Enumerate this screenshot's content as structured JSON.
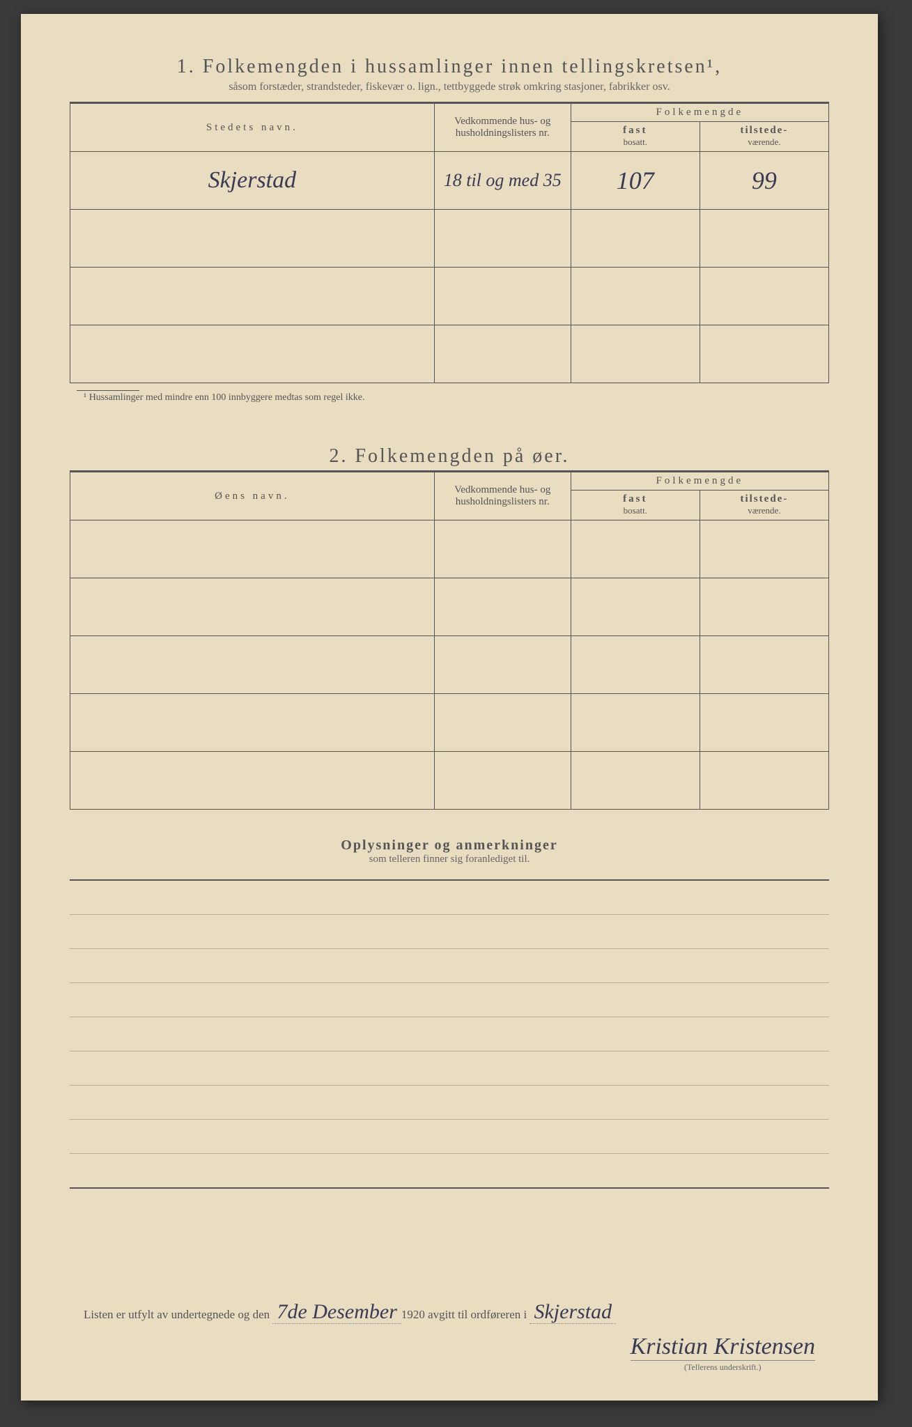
{
  "section1": {
    "number": "1.",
    "title": "Folkemengden i hussamlinger innen tellingskretsen¹,",
    "subtitle": "såsom forstæder, strandsteder, fiskevær o. lign., tettbyggede strøk omkring stasjoner, fabrikker osv.",
    "col_name": "Stedets navn.",
    "col_list": "Vedkommende hus- og husholdningslisters nr.",
    "col_group": "Folkemengde",
    "col_fast": "fast",
    "col_fast_sub": "bosatt.",
    "col_til": "tilstede-",
    "col_til_sub": "værende.",
    "rows": [
      {
        "name": "Skjerstad",
        "list": "18 til og med 35",
        "fast": "107",
        "til": "99"
      },
      {
        "name": "",
        "list": "",
        "fast": "",
        "til": ""
      },
      {
        "name": "",
        "list": "",
        "fast": "",
        "til": ""
      },
      {
        "name": "",
        "list": "",
        "fast": "",
        "til": ""
      }
    ],
    "footnote": "¹ Hussamlinger med mindre enn 100 innbyggere medtas som regel ikke."
  },
  "section2": {
    "number": "2.",
    "title": "Folkemengden på øer.",
    "col_name": "Øens navn.",
    "col_list": "Vedkommende hus- og husholdningslisters nr.",
    "col_group": "Folkemengde",
    "col_fast": "fast",
    "col_fast_sub": "bosatt.",
    "col_til": "tilstede-",
    "col_til_sub": "værende.",
    "rows": [
      {
        "name": "",
        "list": "",
        "fast": "",
        "til": ""
      },
      {
        "name": "",
        "list": "",
        "fast": "",
        "til": ""
      },
      {
        "name": "",
        "list": "",
        "fast": "",
        "til": ""
      },
      {
        "name": "",
        "list": "",
        "fast": "",
        "til": ""
      },
      {
        "name": "",
        "list": "",
        "fast": "",
        "til": ""
      }
    ]
  },
  "notes": {
    "title": "Oplysninger og anmerkninger",
    "subtitle": "som telleren finner sig foranlediget til."
  },
  "footer": {
    "prefix": "Listen er utfylt av undertegnede og den",
    "date_hand": "7de Desember",
    "year": "1920",
    "mid": "avgitt til ordføreren i",
    "place_hand": "Skjerstad",
    "signature": "Kristian Kristensen",
    "sign_label": "(Tellerens underskrift.)"
  }
}
